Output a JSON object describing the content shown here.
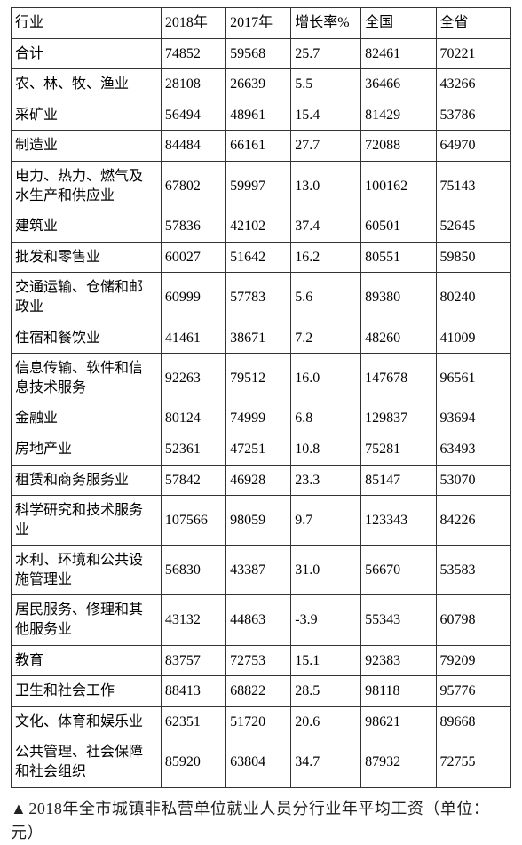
{
  "table": {
    "columns": [
      "行业",
      "2018年",
      "2017年",
      "增长率%",
      "全国",
      "全省"
    ],
    "header_row": [
      "合计",
      "74852",
      "59568",
      "25.7",
      "82461",
      "70221"
    ],
    "rows": [
      [
        "农、林、牧、渔业",
        "28108",
        "26639",
        "5.5",
        "36466",
        "43266"
      ],
      [
        "采矿业",
        "56494",
        "48961",
        "15.4",
        "81429",
        "53786"
      ],
      [
        "制造业",
        "84484",
        "66161",
        "27.7",
        "72088",
        "64970"
      ],
      [
        "电力、热力、燃气及水生产和供应业",
        "67802",
        "59997",
        "13.0",
        "100162",
        "75143"
      ],
      [
        "建筑业",
        "57836",
        "42102",
        "37.4",
        "60501",
        "52645"
      ],
      [
        "批发和零售业",
        "60027",
        "51642",
        "16.2",
        "80551",
        "59850"
      ],
      [
        "交通运输、仓储和邮政业",
        "60999",
        "57783",
        "5.6",
        "89380",
        "80240"
      ],
      [
        "住宿和餐饮业",
        "41461",
        "38671",
        "7.2",
        "48260",
        "41009"
      ],
      [
        "信息传输、软件和信息技术服务",
        "92263",
        "79512",
        "16.0",
        "147678",
        "96561"
      ],
      [
        "金融业",
        "80124",
        "74999",
        "6.8",
        "129837",
        "93694"
      ],
      [
        "房地产业",
        "52361",
        "47251",
        "10.8",
        "75281",
        "63493"
      ],
      [
        "租赁和商务服务业",
        "57842",
        "46928",
        "23.3",
        "85147",
        "53070"
      ],
      [
        "科学研究和技术服务业",
        "107566",
        "98059",
        "9.7",
        "123343",
        "84226"
      ],
      [
        "水利、环境和公共设施管理业",
        "56830",
        "43387",
        "31.0",
        "56670",
        "53583"
      ],
      [
        "居民服务、修理和其他服务业",
        "43132",
        "44863",
        "-3.9",
        "55343",
        "60798"
      ],
      [
        "教育",
        "83757",
        "72753",
        "15.1",
        "92383",
        "79209"
      ],
      [
        "卫生和社会工作",
        "88413",
        "68822",
        "28.5",
        "98118",
        "95776"
      ],
      [
        "文化、体育和娱乐业",
        "62351",
        "51720",
        "20.6",
        "98621",
        "89668"
      ],
      [
        "公共管理、社会保障和社会组织",
        "85920",
        "63804",
        "34.7",
        "87932",
        "72755"
      ]
    ],
    "border_color": "#333333",
    "text_color": "#000000",
    "background_color": "#ffffff",
    "font_size": 16
  },
  "caption": {
    "triangle": "▲",
    "text": "2018年全市城镇非私营单位就业人员分行业年平均工资（单位：元）",
    "font_size": 18,
    "color": "#222222"
  }
}
